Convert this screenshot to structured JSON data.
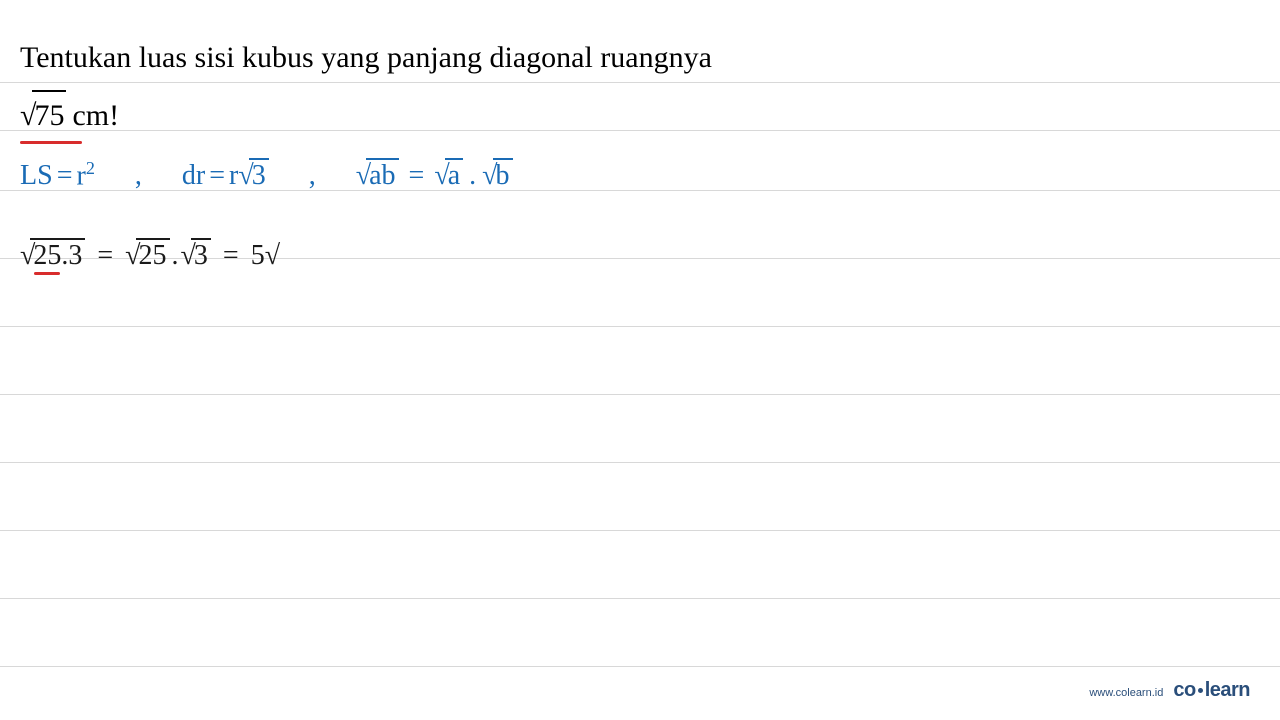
{
  "problem": {
    "line1": "Tentukan luas sisi kubus yang panjang diagonal ruangnya",
    "sqrt_radicand": "75",
    "unit_text": "cm!"
  },
  "formulas": {
    "ls_lhs": "LS",
    "ls_eq": "=",
    "ls_rhs_base": "r",
    "ls_rhs_exp": "2",
    "dr_lhs": "dr",
    "dr_eq": "=",
    "dr_rhs_r": "r",
    "dr_rhs_radicand": "3",
    "prod_lhs_radicand": "ab",
    "prod_eq": "=",
    "prod_rhs_a_radicand": "a",
    "prod_dot": ".",
    "prod_rhs_b_radicand": "b"
  },
  "work": {
    "lhs_radicand": "25.3",
    "eq1": "=",
    "mid_a_radicand": "25",
    "mid_dot": ".",
    "mid_b_radicand": "3",
    "eq2": "=",
    "rhs_coeff": "5",
    "rhs_radical": "√"
  },
  "footer": {
    "url": "www.colearn.id",
    "logo_co": "co",
    "logo_learn": "learn"
  },
  "colors": {
    "text_black": "#000000",
    "blue_ink": "#1a6bb5",
    "black_ink": "#1a1a1a",
    "red_underline": "#d82c2c",
    "rule_line": "#d8d8d8",
    "footer_color": "#2a4e7a",
    "background": "#ffffff"
  },
  "layout": {
    "ruled_line_positions": [
      82,
      130,
      190,
      258,
      326,
      394,
      462,
      530,
      598,
      666
    ]
  }
}
